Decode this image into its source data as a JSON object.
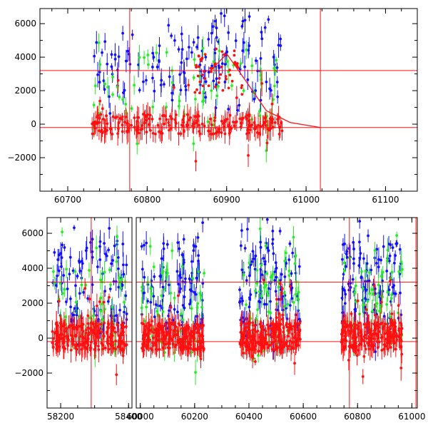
{
  "colors": {
    "series_blue": "#1010ff",
    "series_green": "#22ee22",
    "series_red": "#ff1010",
    "frame": "#000000"
  },
  "chart_data": [
    {
      "type": "scatter",
      "panel": "top",
      "title": "",
      "xlabel": "",
      "ylabel": "",
      "xlim": [
        60665,
        61140
      ],
      "ylim": [
        -4000,
        6900
      ],
      "xticks": [
        60700,
        60800,
        60900,
        61000,
        61100
      ],
      "xtick_labels": [
        "60700",
        "60800",
        "60900",
        "61000",
        "61100"
      ],
      "yticks": [
        -2000,
        0,
        2000,
        4000,
        6000
      ],
      "ytick_labels": [
        "−2000",
        "0",
        "2000",
        "4000",
        "6000"
      ],
      "reference_lines": {
        "horizontal": [
          3200,
          -200
        ],
        "vertical": [
          60778,
          61018
        ]
      },
      "model_curve": [
        [
          60880,
          3200
        ],
        [
          60900,
          4200
        ],
        [
          60915,
          3200
        ],
        [
          60950,
          800
        ],
        [
          60980,
          100
        ],
        [
          61018,
          -200
        ]
      ],
      "series": [
        {
          "name": "blue",
          "x_range": [
            60730,
            60970
          ],
          "band": [
            1500,
            5500
          ]
        },
        {
          "name": "green",
          "x_range": [
            60730,
            60970
          ],
          "band": [
            -200,
            4000
          ]
        },
        {
          "name": "red",
          "x_range": [
            60730,
            60970
          ],
          "band": [
            -600,
            600
          ]
        }
      ]
    },
    {
      "type": "scatter",
      "panel": "bottom",
      "title": "",
      "xlabel": "",
      "ylabel": "",
      "ylim": [
        -4000,
        6900
      ],
      "segments": [
        {
          "xlim": [
            58160,
            58410
          ],
          "xticks": [
            58200,
            58400
          ],
          "xtick_labels": [
            "58200",
            "58400"
          ]
        },
        {
          "xlim": [
            59985,
            61020
          ],
          "xticks": [
            60000,
            60200,
            60400,
            60600,
            60800,
            61000
          ],
          "xtick_labels": [
            "60000",
            "60200",
            "60400",
            "60600",
            "60800",
            "61000"
          ]
        }
      ],
      "yticks": [
        -2000,
        0,
        2000,
        4000,
        6000
      ],
      "ytick_labels": [
        "−2000",
        "0",
        "2000",
        "4000",
        "6000"
      ],
      "reference_lines": {
        "horizontal": [
          3200,
          -200
        ],
        "vertical": [
          58290,
          60770,
          61015
        ]
      },
      "clusters": [
        [
          58175,
          58395
        ],
        [
          60005,
          60235
        ],
        [
          60365,
          60590
        ],
        [
          60740,
          60965
        ]
      ],
      "series": [
        {
          "name": "blue",
          "band": [
            500,
            5500
          ]
        },
        {
          "name": "green",
          "band": [
            -500,
            4000
          ]
        },
        {
          "name": "red",
          "band": [
            -700,
            900
          ]
        }
      ]
    }
  ]
}
